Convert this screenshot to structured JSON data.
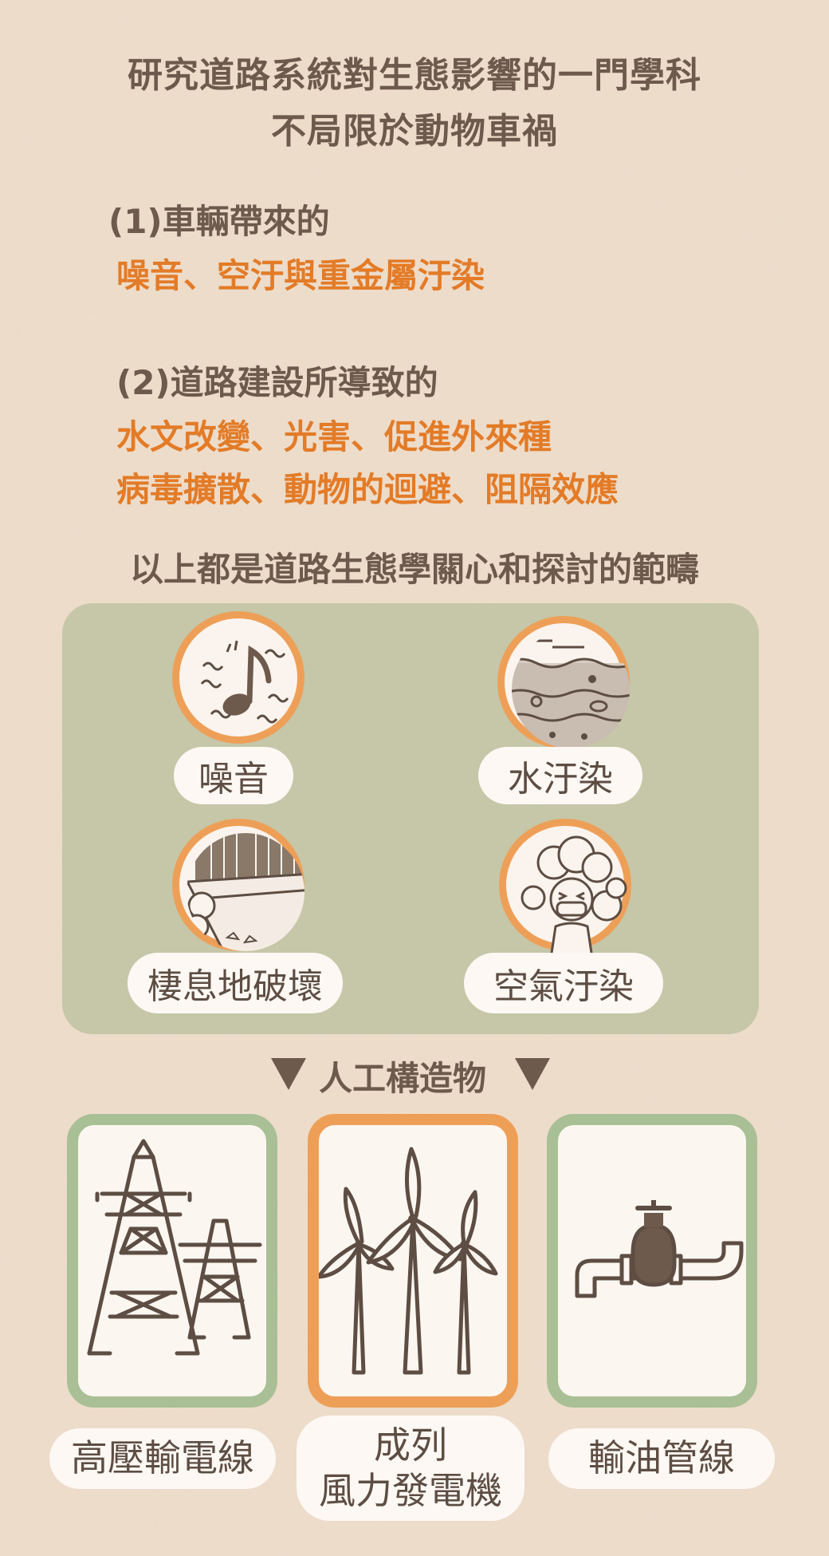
{
  "heading": {
    "line1": "研究道路系統對生態影響的一門學科",
    "line2": "不局限於動物車禍"
  },
  "section1": {
    "title": "(1)車輛帶來的",
    "items": "噪音、空汙與重金屬汙染"
  },
  "section2": {
    "title": "(2)道路建設所導致的",
    "items_line1": "水文改變、光害、促進外來種",
    "items_line2": "病毒擴散、動物的迴避、阻隔效應"
  },
  "summary": "以上都是道路生態學關心和探討的範疇",
  "impacts": [
    {
      "label": "噪音",
      "icon": "music-note-icon"
    },
    {
      "label": "水汙染",
      "icon": "water-pollution-icon"
    },
    {
      "label": "棲息地破壞",
      "icon": "habitat-destruction-icon"
    },
    {
      "label": "空氣汙染",
      "icon": "air-pollution-icon"
    }
  ],
  "structures_title": "人工構造物",
  "structures": [
    {
      "label": "高壓輸電線",
      "icon": "power-tower-icon"
    },
    {
      "label_line1": "成列",
      "label_line2": "風力發電機",
      "icon": "wind-turbine-icon"
    },
    {
      "label": "輸油管線",
      "icon": "pipeline-icon"
    }
  ],
  "colors": {
    "background": "#eddcca",
    "brown_text": "#6e5a4c",
    "orange_text": "#e37b27",
    "green_panel": "#b5bf9b",
    "orange_ring": "#ee9f57",
    "green_ring": "#a9bf95"
  }
}
